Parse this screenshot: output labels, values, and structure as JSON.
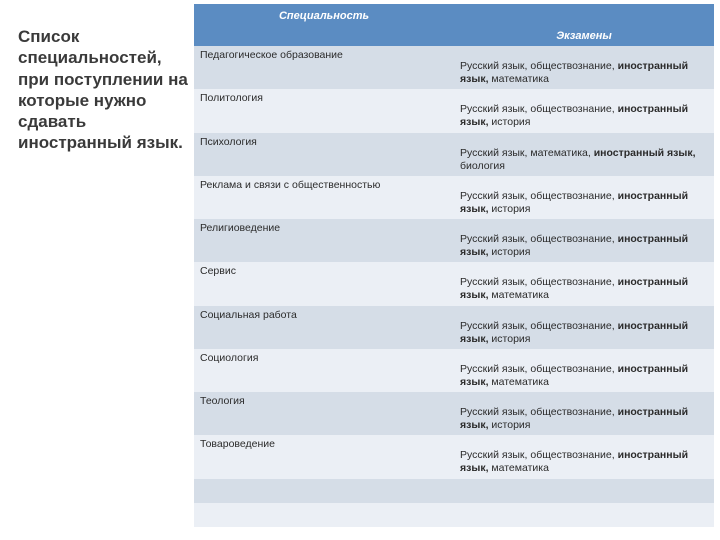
{
  "heading": "Список специальностей,\nпри поступлении на которые нужно сдавать иностранный язык.",
  "table": {
    "header_bg": "#5b8cc2",
    "row_colors": [
      "#d5dde7",
      "#ebeff5"
    ],
    "columns": [
      "Специальность",
      "Экзамены"
    ],
    "rows": [
      {
        "spec": "Педагогическое образование",
        "exam_pre": "Русский язык, обществознание, ",
        "exam_bold": "иностранный язык,",
        "exam_post": " математика"
      },
      {
        "spec": "Политология",
        "exam_pre": "Русский язык, обществознание, ",
        "exam_bold": "иностранный язык,",
        "exam_post": " история"
      },
      {
        "spec": "Психология",
        "exam_pre": "Русский язык, математика, ",
        "exam_bold": "иностранный язык,",
        "exam_post": " биология"
      },
      {
        "spec": "Реклама и связи с общественностью",
        "exam_pre": "Русский язык, обществознание, ",
        "exam_bold": "иностранный язык,",
        "exam_post": " история"
      },
      {
        "spec": "Религиоведение",
        "exam_pre": "Русский язык, обществознание, ",
        "exam_bold": "иностранный язык,",
        "exam_post": " история"
      },
      {
        "spec": "Сервис",
        "exam_pre": "Русский язык, обществознание, ",
        "exam_bold": "иностранный язык,",
        "exam_post": " математика"
      },
      {
        "spec": "Социальная работа",
        "exam_pre": "Русский язык, обществознание, ",
        "exam_bold": "иностранный язык,",
        "exam_post": " история"
      },
      {
        "spec": "Социология",
        "exam_pre": "Русский язык, обществознание, ",
        "exam_bold": "иностранный язык,",
        "exam_post": " математика"
      },
      {
        "spec": "Теология",
        "exam_pre": "Русский язык, обществознание, ",
        "exam_bold": "иностранный язык,",
        "exam_post": " история"
      },
      {
        "spec": "Товароведение",
        "exam_pre": "Русский язык, обществознание, ",
        "exam_bold": "иностранный язык,",
        "exam_post": " математика"
      }
    ],
    "empty_rows": 2
  }
}
